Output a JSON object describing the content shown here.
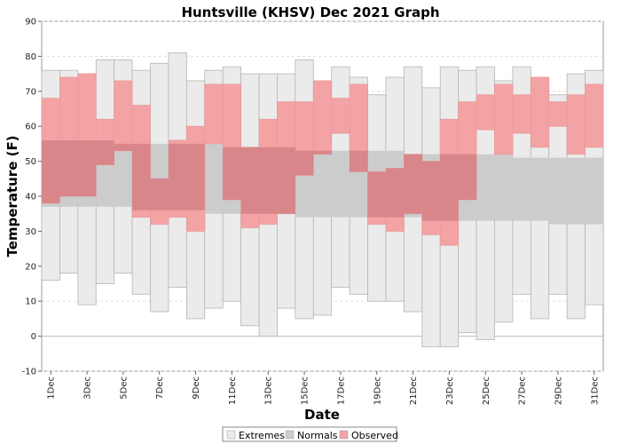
{
  "chart_data": {
    "type": "bar",
    "title": "Huntsville (KHSV) Dec 2021 Graph",
    "xlabel": "Date",
    "ylabel": "Temperature (F)",
    "ylim": [
      -10,
      90
    ],
    "yticks": [
      -10,
      0,
      10,
      20,
      30,
      40,
      50,
      60,
      70,
      80,
      90
    ],
    "x_tick_labels": [
      "1Dec",
      "3Dec",
      "5Dec",
      "7Dec",
      "9Dec",
      "11Dec",
      "13Dec",
      "15Dec",
      "17Dec",
      "19Dec",
      "21Dec",
      "23Dec",
      "25Dec",
      "27Dec",
      "29Dec",
      "31Dec"
    ],
    "categories": [
      "1",
      "2",
      "3",
      "4",
      "5",
      "6",
      "7",
      "8",
      "9",
      "10",
      "11",
      "12",
      "13",
      "14",
      "15",
      "16",
      "17",
      "18",
      "19",
      "20",
      "21",
      "22",
      "23",
      "24",
      "25",
      "26",
      "27",
      "28",
      "29",
      "30",
      "31"
    ],
    "grid": true,
    "legend_position": "bottom",
    "legend": [
      "Extremes",
      "Normals",
      "Observed"
    ],
    "series": [
      {
        "name": "Extremes",
        "color": "#ebebeb",
        "low": [
          16,
          18,
          9,
          15,
          18,
          12,
          7,
          14,
          5,
          8,
          10,
          3,
          0,
          8,
          5,
          6,
          14,
          12,
          10,
          10,
          7,
          -3,
          -3,
          1,
          -1,
          4,
          12,
          5,
          12,
          5,
          9
        ],
        "high": [
          76,
          76,
          75,
          79,
          79,
          76,
          78,
          81,
          73,
          76,
          77,
          75,
          75,
          75,
          79,
          73,
          77,
          74,
          69,
          74,
          77,
          71,
          77,
          76,
          77,
          73,
          77,
          74,
          69,
          75,
          76
        ]
      },
      {
        "name": "Normals",
        "color": "#cccccc",
        "low": [
          37,
          37,
          37,
          37,
          37,
          36,
          36,
          36,
          36,
          35,
          35,
          35,
          35,
          35,
          34,
          34,
          34,
          34,
          34,
          34,
          34,
          33,
          33,
          33,
          33,
          33,
          33,
          33,
          32,
          32,
          32
        ],
        "high": [
          56,
          56,
          56,
          56,
          55,
          55,
          55,
          55,
          55,
          55,
          54,
          54,
          54,
          54,
          53,
          53,
          53,
          53,
          53,
          53,
          52,
          52,
          52,
          52,
          52,
          52,
          51,
          51,
          51,
          51,
          51
        ]
      },
      {
        "name": "Observed",
        "color": "#f4a3a5",
        "low": [
          38,
          40,
          40,
          49,
          53,
          34,
          32,
          34,
          30,
          55,
          39,
          31,
          32,
          35,
          46,
          52,
          58,
          47,
          32,
          30,
          35,
          29,
          26,
          39,
          59,
          52,
          58,
          54,
          60,
          52,
          54
        ],
        "high": [
          68,
          74,
          75,
          62,
          73,
          66,
          45,
          56,
          60,
          72,
          72,
          54,
          62,
          67,
          67,
          73,
          68,
          72,
          47,
          48,
          52,
          50,
          62,
          67,
          69,
          72,
          69,
          74,
          67,
          69,
          72
        ]
      }
    ]
  }
}
